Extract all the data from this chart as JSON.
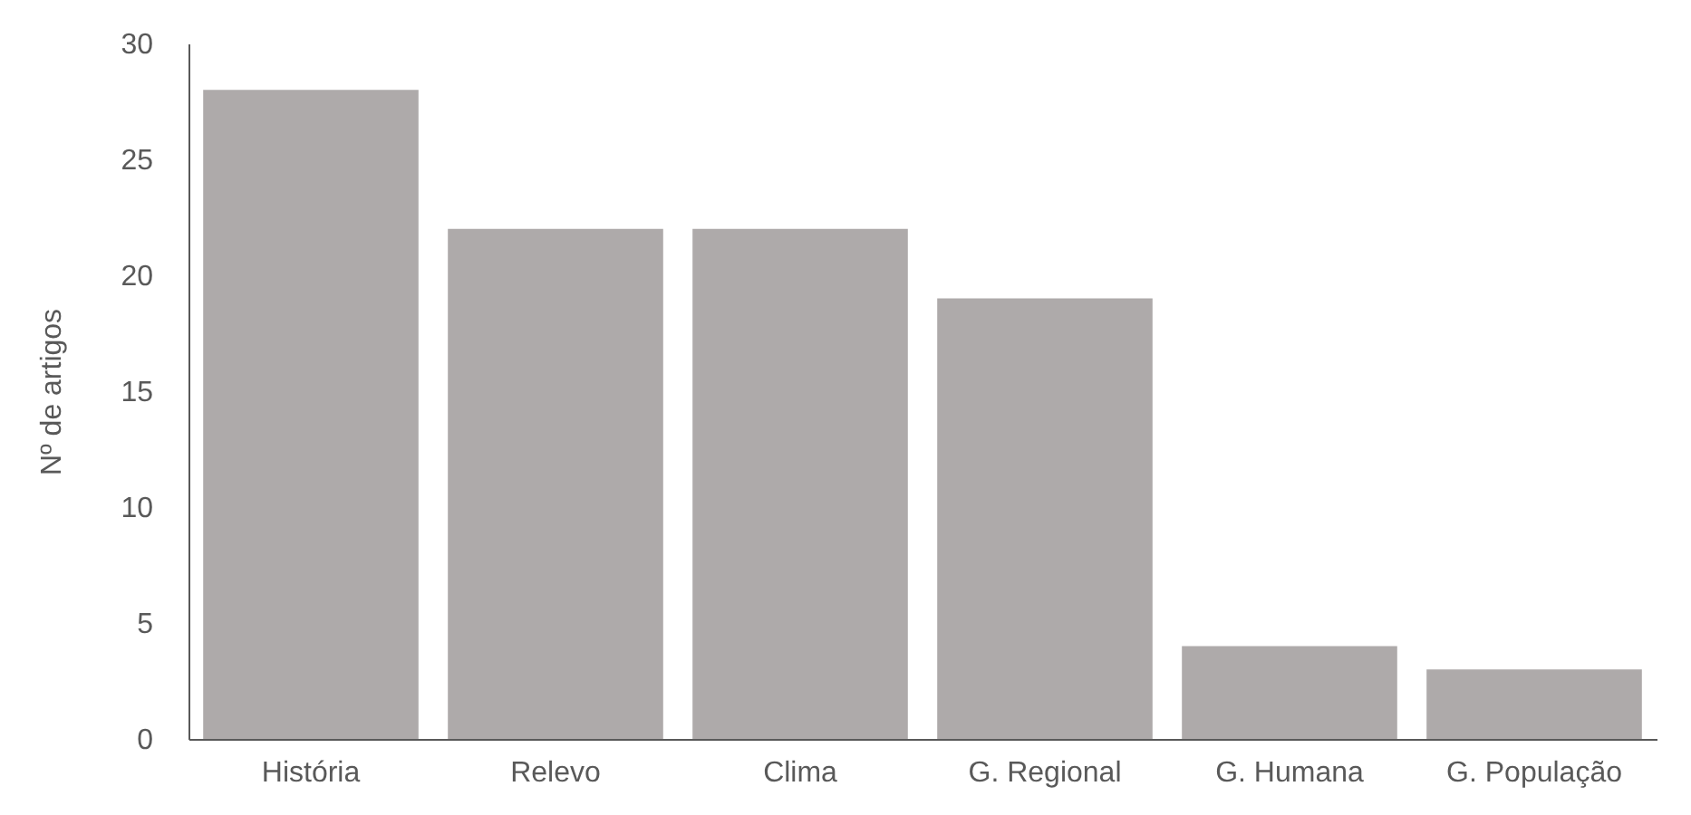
{
  "chart_data": {
    "type": "bar",
    "ylabel": "Nº de artigos",
    "categories": [
      "História",
      "Relevo",
      "Clima",
      "G. Regional",
      "G. Humana",
      "G. População"
    ],
    "values": [
      28,
      22,
      22,
      19,
      4,
      3
    ],
    "color": "#aeaaaa",
    "ylim": [
      0,
      30
    ],
    "yticks": [
      0,
      5,
      10,
      15,
      20,
      25,
      30
    ],
    "grid": false
  }
}
